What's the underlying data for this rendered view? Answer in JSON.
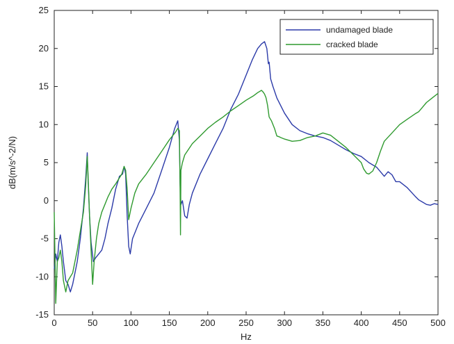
{
  "chart_data": {
    "type": "line",
    "xlabel": "Hz",
    "ylabel": "dB(m/s^-2/N)",
    "xlim": [
      0,
      500
    ],
    "ylim": [
      -15,
      25
    ],
    "xticks": [
      0,
      50,
      100,
      150,
      200,
      250,
      300,
      350,
      400,
      450,
      500
    ],
    "yticks": [
      -15,
      -10,
      -5,
      0,
      5,
      10,
      15,
      20,
      25
    ],
    "grid": false,
    "legend_position": "top-right",
    "series": [
      {
        "name": "undamaged blade",
        "color": "#2b3aa8",
        "x": [
          0,
          2,
          4,
          6,
          8,
          10,
          12,
          15,
          18,
          21,
          24,
          27,
          30,
          34,
          38,
          41,
          43,
          44,
          46,
          48,
          51,
          54,
          58,
          62,
          66,
          70,
          75,
          80,
          85,
          89,
          91,
          93,
          95,
          97,
          99,
          102,
          106,
          110,
          115,
          120,
          130,
          140,
          150,
          157,
          161,
          163,
          164,
          165,
          167,
          170,
          173,
          176,
          180,
          190,
          200,
          210,
          220,
          230,
          240,
          250,
          258,
          265,
          270,
          274,
          277,
          279,
          280,
          282,
          285,
          290,
          300,
          310,
          320,
          330,
          340,
          350,
          360,
          370,
          380,
          390,
          400,
          410,
          420,
          430,
          435,
          440,
          445,
          450,
          460,
          470,
          475,
          480,
          485,
          490,
          495,
          500
        ],
        "y": [
          -9,
          -7,
          -8,
          -5.5,
          -4.5,
          -6,
          -8,
          -10.5,
          -11,
          -12,
          -11,
          -9.5,
          -8,
          -5,
          -1,
          3,
          6.3,
          3,
          -2,
          -5.5,
          -8,
          -7.5,
          -7,
          -6.5,
          -5,
          -3,
          -1,
          1.5,
          3.2,
          3.5,
          4.5,
          3.5,
          -2,
          -6,
          -7,
          -5,
          -4,
          -3,
          -2,
          -1,
          1,
          4,
          7,
          9.5,
          10.5,
          8,
          2,
          -0.5,
          0,
          -2,
          -2.3,
          -0.5,
          1,
          3.5,
          5.5,
          7.5,
          9.5,
          12,
          14,
          16.5,
          18.5,
          20,
          20.6,
          20.9,
          20,
          18,
          18.2,
          16,
          15,
          13.5,
          11.5,
          10,
          9.2,
          8.8,
          8.5,
          8.3,
          7.9,
          7.3,
          6.7,
          6.2,
          5.8,
          5,
          4.4,
          3.2,
          3.8,
          3.4,
          2.5,
          2.5,
          1.7,
          0.6,
          0.1,
          -0.2,
          -0.5,
          -0.6,
          -0.4,
          -0.5
        ]
      },
      {
        "name": "cracked blade",
        "color": "#2f9a2f",
        "x": [
          0,
          2,
          4,
          6,
          8,
          10,
          12,
          15,
          18,
          21,
          24,
          27,
          30,
          34,
          38,
          41,
          43,
          44,
          46,
          48,
          50,
          52,
          55,
          58,
          62,
          66,
          70,
          75,
          80,
          85,
          88,
          91,
          93,
          95,
          97,
          100,
          105,
          110,
          120,
          130,
          140,
          150,
          158,
          161,
          163,
          164,
          164.5,
          165,
          167,
          170,
          180,
          190,
          200,
          210,
          220,
          230,
          240,
          250,
          260,
          265,
          270,
          272,
          274,
          276,
          278,
          280,
          283,
          287,
          290,
          293,
          295,
          300,
          310,
          320,
          330,
          340,
          350,
          360,
          370,
          380,
          390,
          400,
          403,
          407,
          410,
          415,
          420,
          425,
          430,
          440,
          450,
          460,
          470,
          475,
          480,
          485,
          490,
          495,
          500
        ],
        "y": [
          -1.5,
          -13.5,
          -8,
          -7.5,
          -6.5,
          -8,
          -10.5,
          -12,
          -10.5,
          -10,
          -9.5,
          -8,
          -6.5,
          -4,
          -1.5,
          2,
          5.8,
          3.5,
          -2,
          -6.5,
          -11,
          -8,
          -5,
          -3,
          -1.5,
          -0.5,
          0.5,
          1.5,
          2.2,
          3,
          3.5,
          4.5,
          4,
          1.5,
          -2.5,
          -1,
          1,
          2.2,
          3.5,
          5,
          6.5,
          8,
          9,
          9.5,
          9.2,
          1,
          -4.5,
          4,
          5,
          6,
          7.5,
          8.5,
          9.5,
          10.3,
          11,
          11.8,
          12.5,
          13.2,
          13.8,
          14.2,
          14.5,
          14.3,
          14,
          13.5,
          12.5,
          11,
          10.5,
          9.5,
          8.5,
          8.4,
          8.3,
          8.1,
          7.8,
          7.9,
          8.3,
          8.5,
          8.9,
          8.6,
          7.8,
          7,
          6,
          5,
          4.2,
          3.6,
          3.5,
          3.9,
          5,
          6.5,
          7.8,
          8.9,
          10,
          10.7,
          11.4,
          11.7,
          12.3,
          12.9,
          13.3,
          13.7,
          14.1
        ]
      }
    ]
  }
}
